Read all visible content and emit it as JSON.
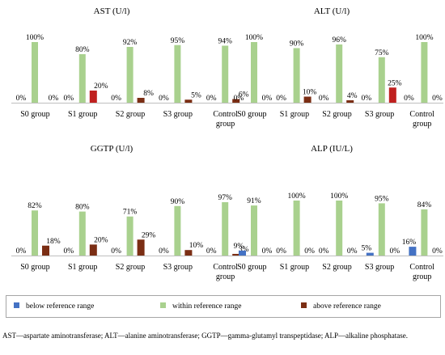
{
  "colors": {
    "below": "#4472C4",
    "within": "#A9D18E",
    "above_dark": "#7B2E14",
    "above_red": "#C0201F",
    "axis": "#BFBFBF",
    "legend_border": "#A6A6A6"
  },
  "legend": {
    "items": [
      {
        "label": "below reference range",
        "color_key": "below"
      },
      {
        "label": "within reference range",
        "color_key": "within"
      },
      {
        "label": "above reference range",
        "color_key": "above_dark"
      }
    ]
  },
  "caption": "AST—aspartate aminotransferase; ALT—alanine aminotransferase; GGTP—gamma-glutamyl transpeptidase; ALP—alkaline phosphatase.",
  "chart_data": [
    {
      "type": "bar",
      "title": "AST (U/l)",
      "categories": [
        "S0 group",
        "S1 group",
        "S2 group",
        "S3 group",
        "Control group"
      ],
      "series": [
        {
          "name": "below reference range",
          "values": [
            0,
            0,
            0,
            0,
            0
          ],
          "labels": [
            "0%",
            "0%",
            "0%",
            "0%",
            "0%"
          ]
        },
        {
          "name": "within reference range",
          "values": [
            100,
            80,
            92,
            95,
            94
          ],
          "labels": [
            "100%",
            "80%",
            "92%",
            "95%",
            "94%"
          ]
        },
        {
          "name": "above reference range",
          "values": [
            0,
            20,
            8,
            5,
            6
          ],
          "labels": [
            "0%",
            "20%",
            "8%",
            "5%",
            "6%"
          ]
        }
      ],
      "ylim": [
        0,
        100
      ]
    },
    {
      "type": "bar",
      "title": "ALT (U/l)",
      "categories": [
        "S0 group",
        "S1 group",
        "S2 group",
        "S3 group",
        "Control group"
      ],
      "series": [
        {
          "name": "below reference range",
          "values": [
            0,
            0,
            0,
            0,
            0
          ],
          "labels": [
            "0%",
            "0%",
            "0%",
            "0%",
            "0%"
          ]
        },
        {
          "name": "within reference range",
          "values": [
            100,
            90,
            96,
            75,
            100
          ],
          "labels": [
            "100%",
            "90%",
            "96%",
            "75%",
            "100%"
          ]
        },
        {
          "name": "above reference range",
          "values": [
            0,
            10,
            4,
            25,
            0
          ],
          "labels": [
            "0%",
            "10%",
            "4%",
            "25%",
            "0%"
          ]
        }
      ],
      "ylim": [
        0,
        100
      ]
    },
    {
      "type": "bar",
      "title": "GGTP (U/l)",
      "categories": [
        "S0 group",
        "S1 group",
        "S2 group",
        "S3 group",
        "Control group"
      ],
      "series": [
        {
          "name": "below reference range",
          "values": [
            0,
            0,
            0,
            0,
            0
          ],
          "labels": [
            "0%",
            "0%",
            "0%",
            "0%",
            "0%"
          ]
        },
        {
          "name": "within reference range",
          "values": [
            82,
            80,
            71,
            90,
            97
          ],
          "labels": [
            "82%",
            "80%",
            "71%",
            "90%",
            "97%"
          ]
        },
        {
          "name": "above reference range",
          "values": [
            18,
            20,
            29,
            10,
            3
          ],
          "labels": [
            "18%",
            "20%",
            "29%",
            "10%",
            "3%"
          ]
        }
      ],
      "ylim": [
        0,
        100
      ]
    },
    {
      "type": "bar",
      "title": "ALP (IU/L)",
      "categories": [
        "S0 group",
        "S1 group",
        "S2 group",
        "S3 group",
        "Control group"
      ],
      "series": [
        {
          "name": "below reference range",
          "values": [
            9,
            0,
            0,
            5,
            16
          ],
          "labels": [
            "9%",
            "0%",
            "0%",
            "5%",
            "16%"
          ]
        },
        {
          "name": "within reference range",
          "values": [
            91,
            100,
            100,
            95,
            84
          ],
          "labels": [
            "91%",
            "100%",
            "100%",
            "95%",
            "84%"
          ]
        },
        {
          "name": "above reference range",
          "values": [
            0,
            0,
            0,
            0,
            0
          ],
          "labels": [
            "0%",
            "0%",
            "0%",
            "0%",
            "0%"
          ]
        }
      ],
      "ylim": [
        0,
        100
      ]
    }
  ]
}
